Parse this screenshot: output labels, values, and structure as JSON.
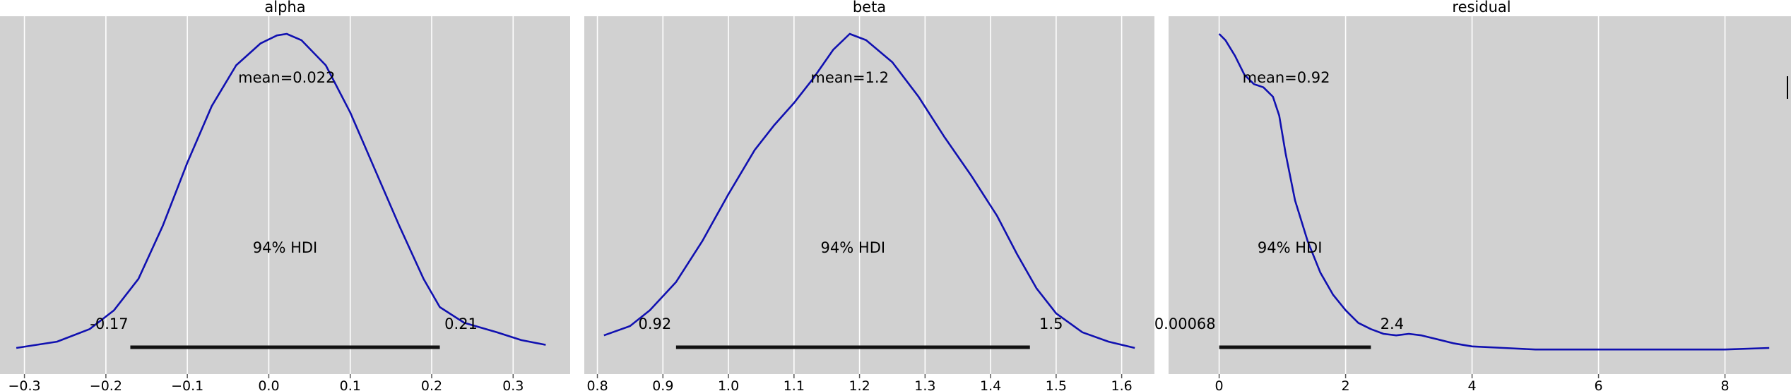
{
  "chart_data": [
    {
      "type": "line",
      "title": "alpha",
      "xlim": [
        -0.33,
        0.37
      ],
      "xticks": [
        -0.3,
        -0.2,
        -0.1,
        0.0,
        0.1,
        0.2,
        0.3
      ],
      "xtick_labels": [
        "−0.3",
        "−0.2",
        "−0.1",
        "0.0",
        "0.1",
        "0.2",
        "0.3"
      ],
      "grid": true,
      "mean_label": "mean=0.022",
      "hdi_label": "94% HDI",
      "hdi": [
        -0.17,
        0.21
      ],
      "hdi_low_label": "-0.17",
      "hdi_high_label": "0.21",
      "curve": {
        "x": [
          -0.31,
          -0.26,
          -0.22,
          -0.19,
          -0.16,
          -0.13,
          -0.1,
          -0.07,
          -0.04,
          -0.01,
          0.01,
          0.022,
          0.04,
          0.07,
          0.1,
          0.13,
          0.16,
          0.19,
          0.21,
          0.24,
          0.28,
          0.31,
          0.34
        ],
        "y": [
          0.0,
          0.02,
          0.06,
          0.12,
          0.22,
          0.39,
          0.59,
          0.77,
          0.9,
          0.97,
          0.995,
          1.0,
          0.98,
          0.9,
          0.75,
          0.57,
          0.39,
          0.22,
          0.13,
          0.08,
          0.05,
          0.025,
          0.01
        ]
      }
    },
    {
      "type": "line",
      "title": "beta",
      "xlim": [
        0.78,
        1.65
      ],
      "xticks": [
        0.8,
        0.9,
        1.0,
        1.1,
        1.2,
        1.3,
        1.4,
        1.5,
        1.6
      ],
      "xtick_labels": [
        "0.8",
        "0.9",
        "1.0",
        "1.1",
        "1.2",
        "1.3",
        "1.4",
        "1.5",
        "1.6"
      ],
      "grid": true,
      "mean_label": "mean=1.2",
      "hdi_label": "94% HDI",
      "hdi": [
        0.92,
        1.46
      ],
      "hdi_low_label": "0.92",
      "hdi_high_label": "1.5",
      "curve": {
        "x": [
          0.81,
          0.85,
          0.88,
          0.92,
          0.96,
          1.0,
          1.04,
          1.07,
          1.1,
          1.13,
          1.16,
          1.185,
          1.21,
          1.25,
          1.29,
          1.33,
          1.37,
          1.41,
          1.44,
          1.47,
          1.5,
          1.54,
          1.58,
          1.62
        ],
        "y": [
          0.04,
          0.07,
          0.12,
          0.21,
          0.34,
          0.49,
          0.63,
          0.71,
          0.78,
          0.86,
          0.95,
          1.0,
          0.98,
          0.91,
          0.8,
          0.67,
          0.55,
          0.42,
          0.3,
          0.19,
          0.11,
          0.05,
          0.02,
          0.0
        ]
      }
    },
    {
      "type": "line",
      "title": "residual",
      "xlim": [
        -0.8,
        9.1
      ],
      "xticks": [
        0,
        2,
        4,
        6,
        8
      ],
      "xtick_labels": [
        "0",
        "2",
        "4",
        "6",
        "8"
      ],
      "grid": true,
      "mean_label": "mean=0.92",
      "hdi_label": "94% HDI",
      "hdi": [
        0.00068,
        2.4
      ],
      "hdi_low_label": "0.00068",
      "hdi_high_label": "2.4",
      "curve": {
        "x": [
          0.0,
          0.1,
          0.25,
          0.4,
          0.55,
          0.7,
          0.85,
          0.95,
          1.05,
          1.2,
          1.4,
          1.6,
          1.8,
          2.0,
          2.2,
          2.4,
          2.6,
          2.8,
          3.0,
          3.2,
          3.4,
          3.7,
          4.0,
          4.5,
          5.0,
          6.0,
          7.0,
          8.0,
          8.7
        ],
        "y": [
          1.0,
          0.98,
          0.93,
          0.87,
          0.84,
          0.83,
          0.8,
          0.74,
          0.62,
          0.47,
          0.34,
          0.24,
          0.17,
          0.12,
          0.08,
          0.06,
          0.045,
          0.04,
          0.045,
          0.04,
          0.03,
          0.015,
          0.005,
          0.0,
          -0.005,
          -0.005,
          -0.005,
          -0.005,
          0.0
        ]
      }
    }
  ],
  "colors": {
    "panel_bg": "#d1d1d1",
    "grid": "#ffffff",
    "curve": "#1010b0",
    "hdi_bar": "#111111",
    "axis": "#555555"
  }
}
